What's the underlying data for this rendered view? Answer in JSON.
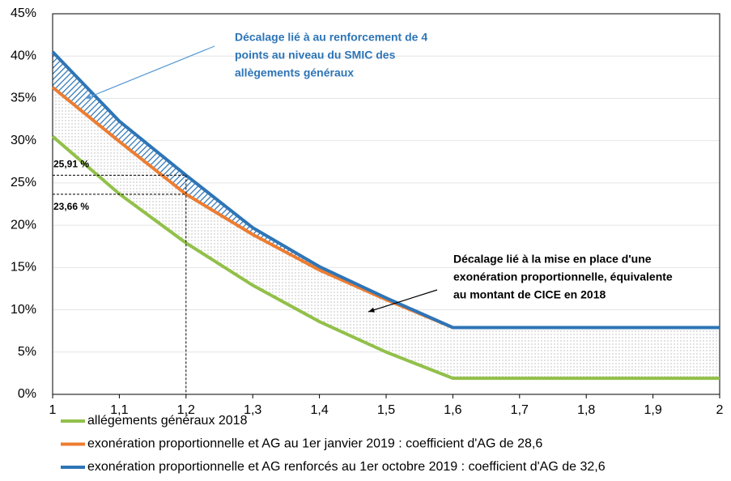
{
  "chart_data": {
    "type": "line",
    "x": [
      1,
      1.1,
      1.2,
      1.3,
      1.4,
      1.5,
      1.6,
      1.7,
      1.8,
      1.9,
      2
    ],
    "series": [
      {
        "name": "allégements généraux 2018",
        "color": "#92c04a",
        "values": [
          30.5,
          23.7,
          17.9,
          12.9,
          8.6,
          5.0,
          1.9,
          1.9,
          1.9,
          1.9,
          1.9
        ]
      },
      {
        "name": "exonération proportionnelle et AG au 1er janvier 2019 : coefficient d'AG de 28,6",
        "color": "#ed7d31",
        "values": [
          36.3,
          29.9,
          23.66,
          18.9,
          14.7,
          11.2,
          7.9,
          7.9,
          7.9,
          7.9,
          7.9
        ],
        "value_labels": [
          null,
          null,
          "23,66 %",
          null,
          null,
          null,
          null,
          null,
          null,
          null,
          null
        ]
      },
      {
        "name": "exonération proportionnelle et AG renforcés au 1er octobre 2019 : coefficient d'AG de 32,6",
        "color": "#2e75b6",
        "values": [
          40.5,
          32.3,
          25.91,
          19.7,
          15.1,
          11.4,
          7.9,
          7.9,
          7.9,
          7.9,
          7.9
        ],
        "value_labels": [
          null,
          null,
          "25,91 %",
          null,
          null,
          null,
          null,
          null,
          null,
          null,
          null
        ]
      }
    ],
    "xlim": [
      1,
      2
    ],
    "xticks": [
      {
        "value": 1,
        "label": "1"
      },
      {
        "value": 1.1,
        "label": "1,1"
      },
      {
        "value": 1.2,
        "label": "1,2"
      },
      {
        "value": 1.3,
        "label": "1,3"
      },
      {
        "value": 1.4,
        "label": "1,4"
      },
      {
        "value": 1.5,
        "label": "1,5"
      },
      {
        "value": 1.6,
        "label": "1,6"
      },
      {
        "value": 1.7,
        "label": "1,7"
      },
      {
        "value": 1.8,
        "label": "1,8"
      },
      {
        "value": 1.9,
        "label": "1,9"
      },
      {
        "value": 2,
        "label": "2"
      }
    ],
    "ylim": [
      0,
      45
    ],
    "yticks": [
      {
        "value": 0,
        "label": "0%"
      },
      {
        "value": 5,
        "label": "5%"
      },
      {
        "value": 10,
        "label": "10%"
      },
      {
        "value": 15,
        "label": "15%"
      },
      {
        "value": 20,
        "label": "20%"
      },
      {
        "value": 25,
        "label": "25%"
      },
      {
        "value": 30,
        "label": "30%"
      },
      {
        "value": 35,
        "label": "35%"
      },
      {
        "value": 40,
        "label": "40%"
      },
      {
        "value": 45,
        "label": "45%"
      }
    ],
    "grid": true,
    "annotations": [
      {
        "lines": [
          "Décalage lié à au renforcement de 4",
          "points au niveau du SMIC des",
          "allègements généraux"
        ]
      },
      {
        "lines": [
          "Décalage lié à la mise en place d'une",
          "exonération proportionnelle, équivalente",
          "au montant de CICE en 2018"
        ]
      }
    ]
  }
}
